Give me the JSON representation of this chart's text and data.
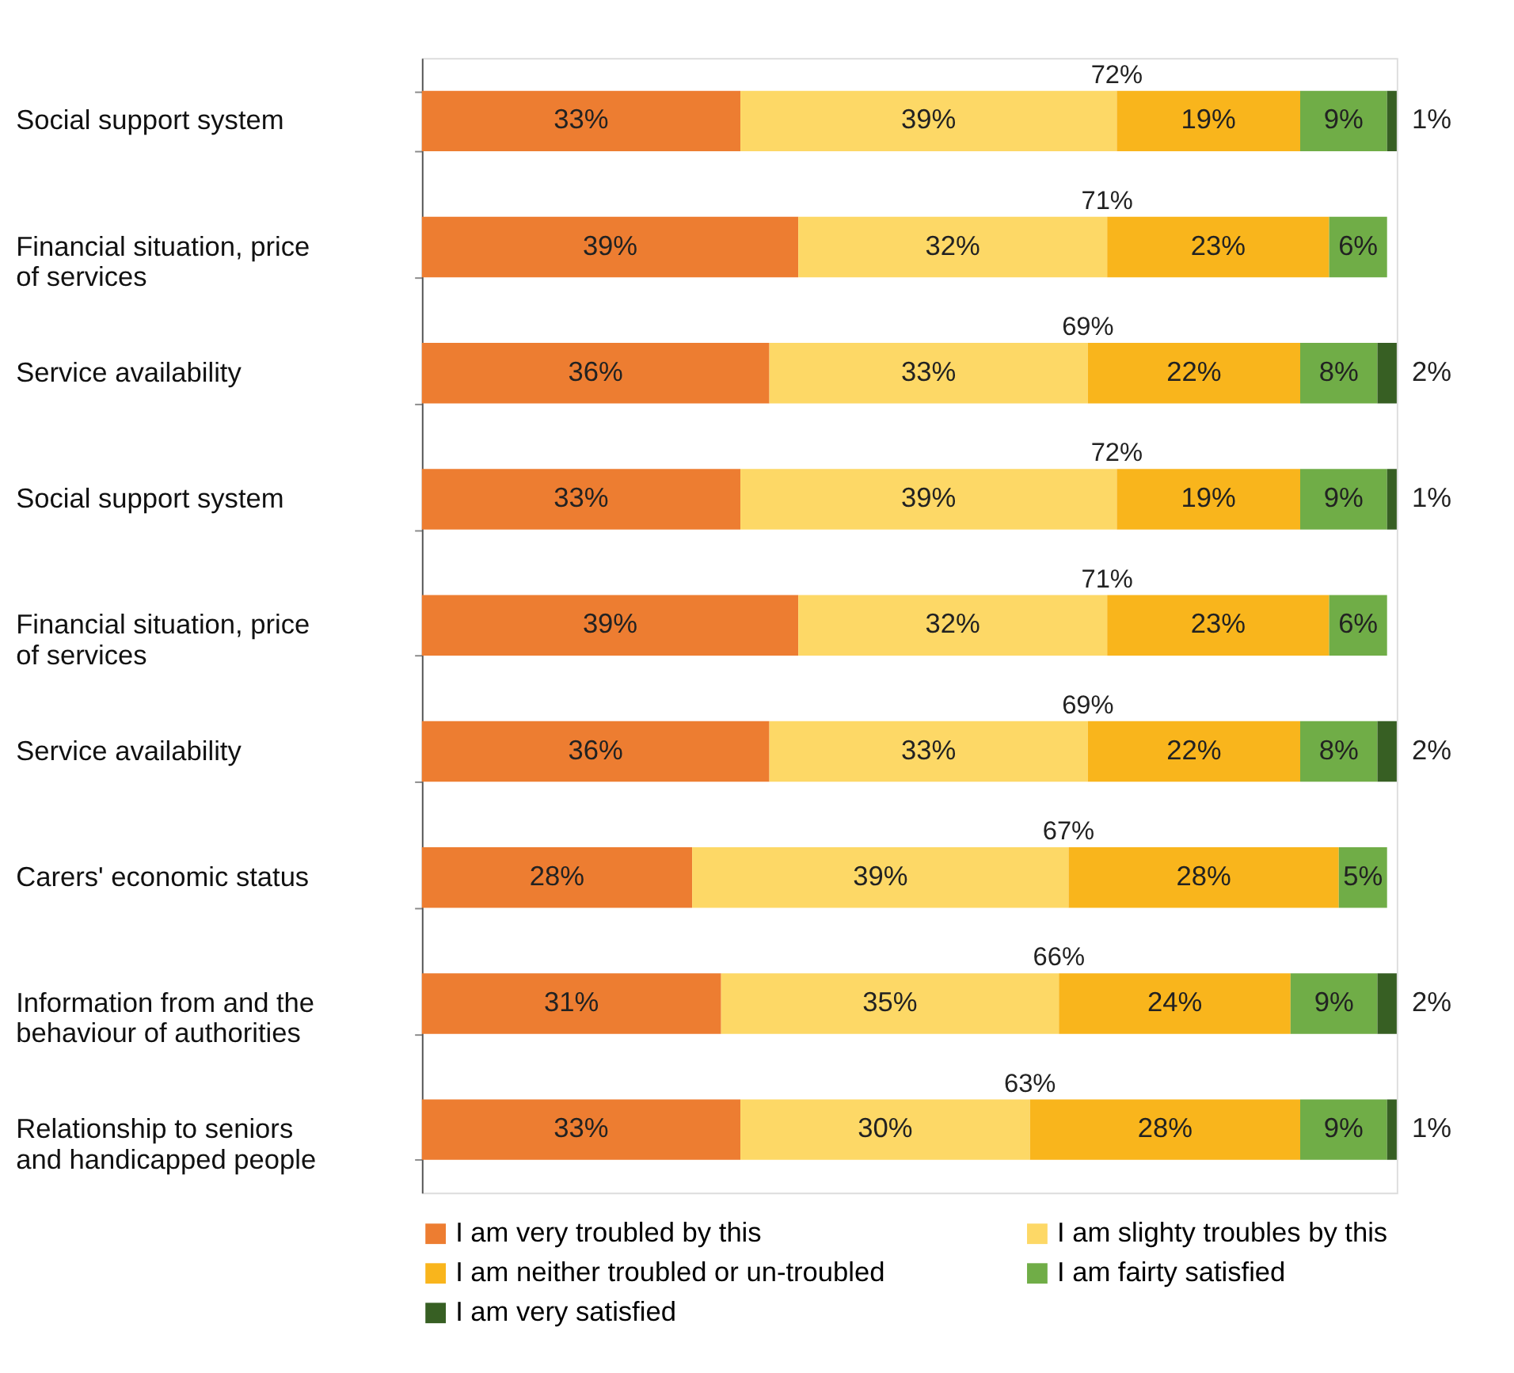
{
  "chart_data": {
    "type": "bar",
    "orientation": "horizontal",
    "stacked": true,
    "data_labels": true,
    "legend": "bottom",
    "tick_labels": "y",
    "categories": [
      "Social support system",
      "Financial situation, price of services",
      "Service availability",
      "Social support system",
      "Financial situation, price of services",
      "Service availability",
      "Carers' economic status",
      "Information from and the behaviour of authorities",
      "Relationship to seniors and handicapped people"
    ],
    "series": [
      {
        "name": "I am very troubled by this",
        "color": "#ed7d31",
        "values": [
          33,
          39,
          36,
          33,
          39,
          36,
          28,
          31,
          33
        ],
        "value_labels": [
          "33%",
          "39%",
          "36%",
          "33%",
          "39%",
          "36%",
          "28%",
          "31%",
          "33%"
        ]
      },
      {
        "name": "I am slighty troubles by this",
        "color": "#fdd866",
        "values": [
          39,
          32,
          33,
          39,
          32,
          33,
          39,
          35,
          30
        ],
        "value_labels": [
          "39%",
          "32%",
          "33%",
          "39%",
          "32%",
          "33%",
          "39%",
          "35%",
          "30%"
        ]
      },
      {
        "name": "I am neither troubled or un-troubled",
        "color": "#f9b51c",
        "values": [
          19,
          23,
          22,
          19,
          23,
          22,
          28,
          24,
          28
        ],
        "value_labels": [
          "19%",
          "23%",
          "22%",
          "19%",
          "23%",
          "22%",
          "28%",
          "24%",
          "28%"
        ]
      },
      {
        "name": "I am fairty satisfied",
        "color": "#70ad47",
        "values": [
          9,
          6,
          8,
          9,
          6,
          8,
          5,
          9,
          9
        ],
        "value_labels": [
          "9%",
          "6%",
          "8%",
          "9%",
          "6%",
          "8%",
          "5%",
          "9%",
          "9%"
        ]
      },
      {
        "name": "I am very satisfied",
        "color": "#375f23",
        "values": [
          1,
          null,
          2,
          1,
          null,
          2,
          null,
          2,
          1
        ],
        "value_labels": [
          "1%",
          null,
          "2%",
          "1%",
          null,
          "2%",
          null,
          "2%",
          "1%"
        ]
      }
    ],
    "annotations": [
      "72%",
      "71%",
      "69%",
      "72%",
      "71%",
      "69%",
      "67%",
      "66%",
      "63%"
    ]
  }
}
